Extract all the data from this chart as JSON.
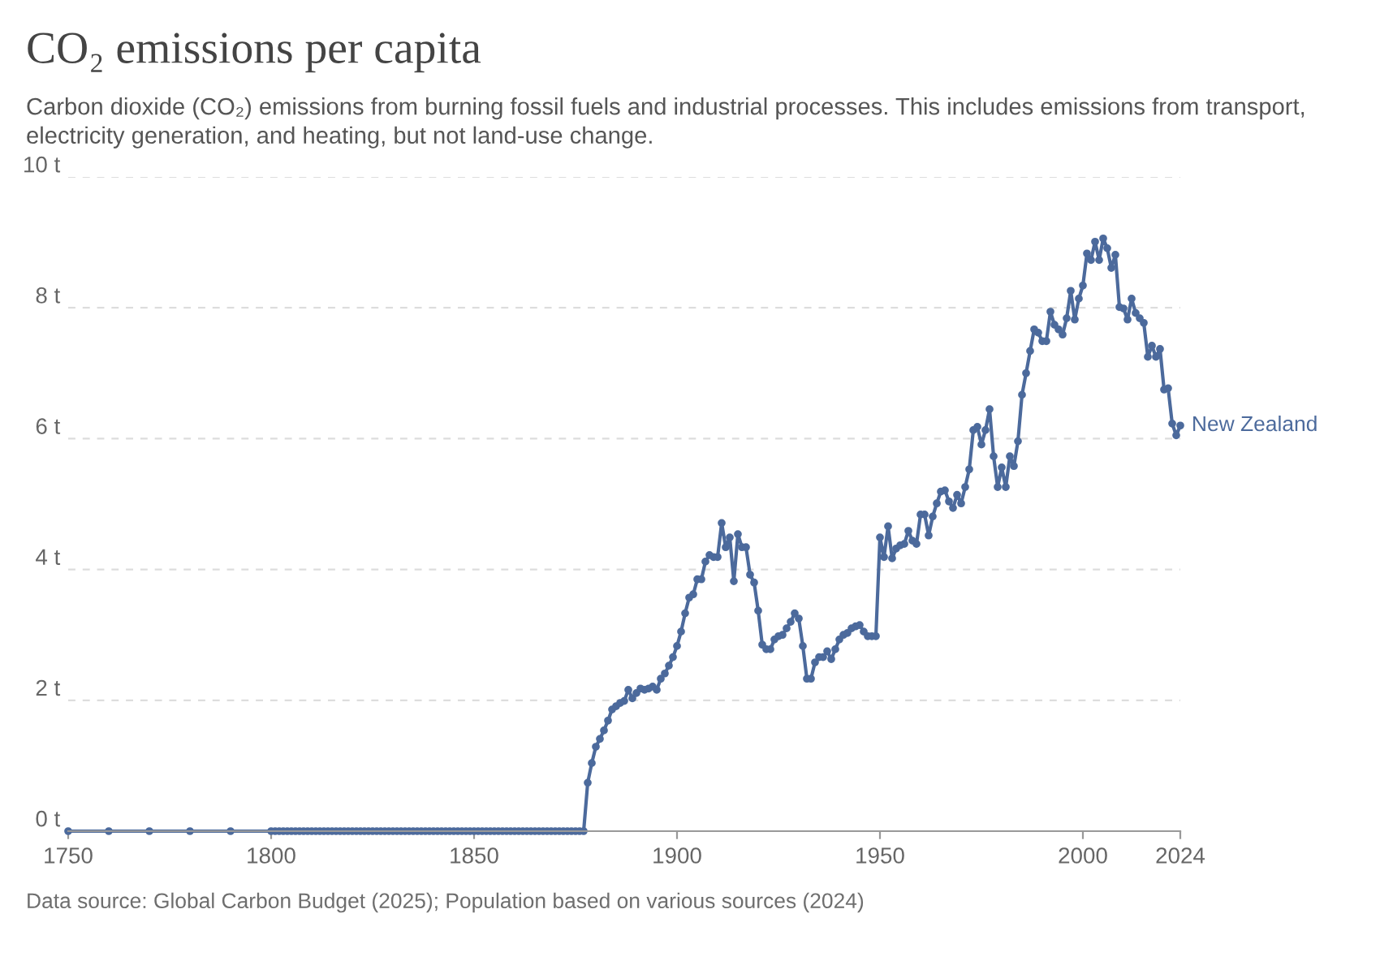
{
  "chart_data": {
    "type": "line",
    "title": "CO₂ emissions per capita",
    "subtitle": "Carbon dioxide (CO₂) emissions from burning fossil fuels and industrial processes. This includes emissions from transport, electricity generation, and heating, but not land-use change.",
    "annotations": [
      "Data source: Global Carbon Budget (2025); Population based on various sources (2024)"
    ],
    "x": [
      1750,
      1760,
      1770,
      1780,
      1790,
      1800,
      1801,
      1802,
      1803,
      1804,
      1805,
      1806,
      1807,
      1808,
      1809,
      1810,
      1811,
      1812,
      1813,
      1814,
      1815,
      1816,
      1817,
      1818,
      1819,
      1820,
      1821,
      1822,
      1823,
      1824,
      1825,
      1826,
      1827,
      1828,
      1829,
      1830,
      1831,
      1832,
      1833,
      1834,
      1835,
      1836,
      1837,
      1838,
      1839,
      1840,
      1841,
      1842,
      1843,
      1844,
      1845,
      1846,
      1847,
      1848,
      1849,
      1850,
      1851,
      1852,
      1853,
      1854,
      1855,
      1856,
      1857,
      1858,
      1859,
      1860,
      1861,
      1862,
      1863,
      1864,
      1865,
      1866,
      1867,
      1868,
      1869,
      1870,
      1871,
      1872,
      1873,
      1874,
      1875,
      1876,
      1877,
      1878,
      1879,
      1880,
      1881,
      1882,
      1883,
      1884,
      1885,
      1886,
      1887,
      1888,
      1889,
      1890,
      1891,
      1892,
      1893,
      1894,
      1895,
      1896,
      1897,
      1898,
      1899,
      1900,
      1901,
      1902,
      1903,
      1904,
      1905,
      1906,
      1907,
      1908,
      1909,
      1910,
      1911,
      1912,
      1913,
      1914,
      1915,
      1916,
      1917,
      1918,
      1919,
      1920,
      1921,
      1922,
      1923,
      1924,
      1925,
      1926,
      1927,
      1928,
      1929,
      1930,
      1931,
      1932,
      1933,
      1934,
      1935,
      1936,
      1937,
      1938,
      1939,
      1940,
      1941,
      1942,
      1943,
      1944,
      1945,
      1946,
      1947,
      1948,
      1949,
      1950,
      1951,
      1952,
      1953,
      1954,
      1955,
      1956,
      1957,
      1958,
      1959,
      1960,
      1961,
      1962,
      1963,
      1964,
      1965,
      1966,
      1967,
      1968,
      1969,
      1970,
      1971,
      1972,
      1973,
      1974,
      1975,
      1976,
      1977,
      1978,
      1979,
      1980,
      1981,
      1982,
      1983,
      1984,
      1985,
      1986,
      1987,
      1988,
      1989,
      1990,
      1991,
      1992,
      1993,
      1994,
      1995,
      1996,
      1997,
      1998,
      1999,
      2000,
      2001,
      2002,
      2003,
      2004,
      2005,
      2006,
      2007,
      2008,
      2009,
      2010,
      2011,
      2012,
      2013,
      2014,
      2015,
      2016,
      2017,
      2018,
      2019,
      2020,
      2021,
      2022,
      2023,
      2024
    ],
    "series": [
      {
        "name": "New Zealand",
        "color": "#4c6a9c",
        "values": [
          0,
          0,
          0,
          0,
          0,
          0,
          0,
          0,
          0,
          0,
          0,
          0,
          0,
          0,
          0,
          0,
          0,
          0,
          0,
          0,
          0,
          0,
          0,
          0,
          0,
          0,
          0,
          0,
          0,
          0,
          0,
          0,
          0,
          0,
          0,
          0,
          0,
          0,
          0,
          0,
          0,
          0,
          0,
          0,
          0,
          0,
          0,
          0,
          0,
          0,
          0,
          0,
          0,
          0,
          0,
          0,
          0,
          0,
          0,
          0,
          0,
          0,
          0,
          0,
          0,
          0,
          0,
          0,
          0,
          0,
          0,
          0,
          0,
          0,
          0,
          0,
          0,
          0,
          0,
          0,
          0,
          0,
          0,
          0.74,
          1.04,
          1.29,
          1.41,
          1.54,
          1.69,
          1.86,
          1.91,
          1.96,
          1.99,
          2.16,
          2.03,
          2.11,
          2.18,
          2.16,
          2.18,
          2.21,
          2.16,
          2.33,
          2.41,
          2.53,
          2.66,
          2.83,
          3.05,
          3.33,
          3.57,
          3.62,
          3.85,
          3.85,
          4.12,
          4.22,
          4.19,
          4.19,
          4.71,
          4.34,
          4.49,
          3.82,
          4.54,
          4.34,
          4.34,
          3.92,
          3.8,
          3.37,
          2.85,
          2.78,
          2.78,
          2.93,
          2.98,
          3.0,
          3.1,
          3.2,
          3.33,
          3.25,
          2.83,
          2.33,
          2.33,
          2.58,
          2.66,
          2.66,
          2.75,
          2.63,
          2.78,
          2.93,
          3.0,
          3.03,
          3.1,
          3.13,
          3.15,
          3.05,
          2.98,
          2.98,
          2.98,
          4.49,
          4.19,
          4.66,
          4.17,
          4.32,
          4.37,
          4.39,
          4.59,
          4.44,
          4.39,
          4.84,
          4.84,
          4.52,
          4.81,
          5.01,
          5.19,
          5.21,
          5.04,
          4.94,
          5.14,
          5.01,
          5.26,
          5.53,
          6.13,
          6.18,
          5.91,
          6.13,
          6.45,
          5.73,
          5.26,
          5.56,
          5.26,
          5.73,
          5.58,
          5.96,
          6.67,
          7.0,
          7.34,
          7.67,
          7.62,
          7.49,
          7.49,
          7.94,
          7.74,
          7.67,
          7.59,
          7.84,
          8.26,
          7.82,
          8.14,
          8.34,
          8.83,
          8.73,
          9.01,
          8.73,
          9.06,
          8.91,
          8.61,
          8.81,
          8.01,
          7.99,
          7.82,
          8.14,
          7.92,
          7.84,
          7.77,
          7.25,
          7.42,
          7.25,
          7.37,
          6.75,
          6.77,
          6.23,
          6.05,
          6.2
        ]
      }
    ],
    "xlim": [
      1750,
      2024
    ],
    "xticks": [
      1750,
      1800,
      1850,
      1900,
      1950,
      2000,
      2024
    ],
    "ylim": [
      0,
      10
    ],
    "yticks": [
      {
        "value": 0,
        "label": "0 t"
      },
      {
        "value": 2,
        "label": "2 t"
      },
      {
        "value": 4,
        "label": "4 t"
      },
      {
        "value": 6,
        "label": "6 t"
      },
      {
        "value": 8,
        "label": "8 t"
      },
      {
        "value": 10,
        "label": "10 t"
      }
    ],
    "grid": "y",
    "marker": "circle",
    "line_style": "solid",
    "legend": false
  }
}
